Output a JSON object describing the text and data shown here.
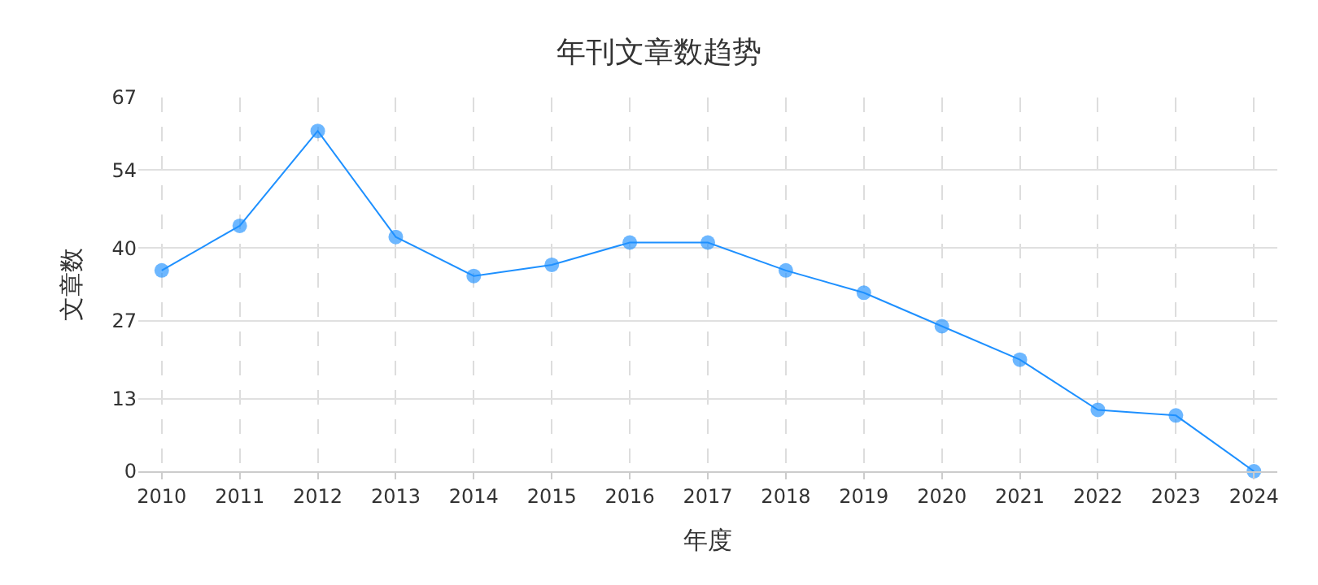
{
  "chart_data": {
    "type": "line",
    "title": "年刊文章数趋势",
    "xlabel": "年度",
    "ylabel": "文章数",
    "categories": [
      "2010",
      "2011",
      "2012",
      "2013",
      "2014",
      "2015",
      "2016",
      "2017",
      "2018",
      "2019",
      "2020",
      "2021",
      "2022",
      "2023",
      "2024"
    ],
    "series": [
      {
        "color": "#1e90ff",
        "values": [
          36,
          44,
          61,
          42,
          35,
          37,
          41,
          41,
          36,
          32,
          26,
          20,
          11,
          10,
          0
        ]
      }
    ],
    "ylim": [
      0,
      67
    ],
    "yticks": [
      0,
      13,
      27,
      40,
      54,
      67
    ],
    "grid": true,
    "marker": "circle",
    "line_style": "solid",
    "legend": false
  }
}
